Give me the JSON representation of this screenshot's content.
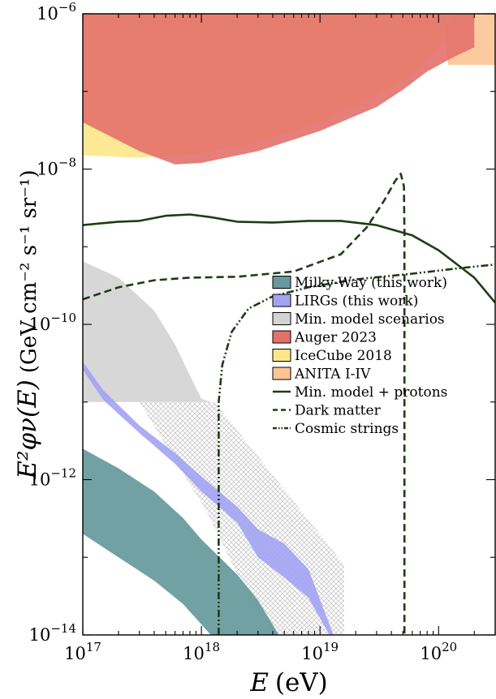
{
  "chart_data": {
    "type": "area",
    "xlabel_main": "E",
    "xlabel_unit": "(eV)",
    "ylabel_main": "E²φν(E)",
    "ylabel_unit": "(GeV cm⁻² s⁻¹ sr⁻¹)",
    "x_scale": "log",
    "y_scale": "log",
    "xlim": [
      1e+17,
      3e+20
    ],
    "ylim": [
      1e-14,
      1e-06
    ],
    "x_ticks": [
      {
        "value": 1e+17,
        "base": "10",
        "exp": "17"
      },
      {
        "value": 1e+18,
        "base": "10",
        "exp": "18"
      },
      {
        "value": 1e+19,
        "base": "10",
        "exp": "19"
      },
      {
        "value": 1e+20,
        "base": "10",
        "exp": "20"
      }
    ],
    "y_ticks": [
      {
        "value": 1e-14,
        "base": "10",
        "exp": "−14"
      },
      {
        "value": 1e-12,
        "base": "10",
        "exp": "−12"
      },
      {
        "value": 1e-10,
        "base": "10",
        "exp": "−10"
      },
      {
        "value": 1e-08,
        "base": "10",
        "exp": "−8"
      },
      {
        "value": 1e-06,
        "base": "10",
        "exp": "−6"
      }
    ],
    "grid": false,
    "legend_position": "center-right",
    "series": [
      {
        "name": "ANITA I-IV",
        "kind": "band",
        "color": "#fbc595",
        "upper": [
          [
            1e+17,
            1e-06
          ],
          [
            3e+20,
            1e-06
          ]
        ],
        "lower": [
          [
            1.1e+20,
            1e-06
          ],
          [
            1.2e+20,
            2.2e-07
          ],
          [
            3e+20,
            2.2e-07
          ]
        ]
      },
      {
        "name": "IceCube 2018",
        "kind": "band",
        "color": "#fde68a",
        "upper": [
          [
            1e+17,
            1e-06
          ],
          [
            3e+20,
            1e-06
          ]
        ],
        "lower": [
          [
            1e+17,
            1.5e-08
          ],
          [
            3e+17,
            1.4e-08
          ],
          [
            1e+18,
            1.6e-08
          ],
          [
            3e+18,
            2.2e-08
          ],
          [
            1e+19,
            4e-08
          ],
          [
            3e+19,
            9e-08
          ],
          [
            6e+19,
            1.6e-07
          ],
          [
            1e+20,
            3.5e-07
          ],
          [
            1.3e+20,
            1e-06
          ]
        ]
      },
      {
        "name": "Auger 2023",
        "kind": "band",
        "color": "#e3716a",
        "upper": [
          [
            1e+17,
            1e-06
          ],
          [
            2e+20,
            1e-06
          ]
        ],
        "lower": [
          [
            1e+17,
            4e-08
          ],
          [
            3e+17,
            1.7e-08
          ],
          [
            6e+17,
            1.15e-08
          ],
          [
            1e+18,
            1.2e-08
          ],
          [
            3e+18,
            1.7e-08
          ],
          [
            1e+19,
            3.1e-08
          ],
          [
            3e+19,
            6.3e-08
          ],
          [
            5e+19,
            1.05e-07
          ],
          [
            8e+19,
            1.8e-07
          ],
          [
            1.3e+20,
            2.7e-07
          ],
          [
            2e+20,
            3.7e-07
          ]
        ]
      },
      {
        "name": "Min. model scenarios",
        "kind": "band",
        "color": "#d3d3d3",
        "upper": [
          [
            1e+17,
            6.5e-10
          ],
          [
            2e+17,
            4e-10
          ],
          [
            4e+17,
            1.5e-10
          ],
          [
            6e+17,
            5.5e-11
          ],
          [
            8e+17,
            2.2e-11
          ],
          [
            1e+18,
            1.1e-11
          ],
          [
            1.2e+18,
            1e-11
          ]
        ],
        "lower": [
          [
            1e+17,
            1e-11
          ],
          [
            1.2e+18,
            1e-11
          ]
        ]
      },
      {
        "name": "Min. model hatched",
        "kind": "band",
        "color": "#d0d0d0",
        "upper": [
          [
            3e+17,
            1e-11
          ],
          [
            1.3e+18,
            1e-11
          ],
          [
            1.6e+19,
            8e-14
          ]
        ],
        "lower": [
          [
            3e+17,
            1e-11
          ],
          [
            1.1e+18,
            4e-13
          ],
          [
            2.5e+18,
            3e-14
          ],
          [
            4.2e+18,
            1e-14
          ],
          [
            1.6e+19,
            1e-14
          ]
        ]
      },
      {
        "name": "LIRGs (this work)",
        "kind": "band",
        "color": "#a3a3f4",
        "upper": [
          [
            1e+17,
            3.3e-11
          ],
          [
            1.5e+17,
            1.4e-11
          ],
          [
            3e+17,
            5e-12
          ],
          [
            6e+17,
            2.2e-12
          ],
          [
            1e+18,
            1.1e-12
          ],
          [
            2e+18,
            4.5e-13
          ],
          [
            3e+18,
            2.3e-13
          ],
          [
            5e+18,
            1.5e-13
          ],
          [
            8e+18,
            7e-14
          ],
          [
            1.3e+19,
            1e-14
          ]
        ],
        "lower": [
          [
            1e+17,
            2.6e-11
          ],
          [
            1.5e+17,
            1.05e-11
          ],
          [
            3e+17,
            4e-12
          ],
          [
            6e+17,
            1.6e-12
          ],
          [
            1e+18,
            7e-13
          ],
          [
            2e+18,
            2.8e-13
          ],
          [
            3e+18,
            1e-13
          ],
          [
            5e+18,
            5.5e-14
          ],
          [
            8e+18,
            3e-14
          ],
          [
            1.2e+19,
            1e-14
          ]
        ]
      },
      {
        "name": "Milky-Way (this work)",
        "kind": "band",
        "color": "#66999b",
        "upper": [
          [
            1e+17,
            2.5e-12
          ],
          [
            2e+17,
            1.4e-12
          ],
          [
            4e+17,
            7e-13
          ],
          [
            7e+17,
            3.2e-13
          ],
          [
            1e+18,
            1.7e-13
          ],
          [
            2e+18,
            6e-14
          ],
          [
            3e+18,
            2.8e-14
          ],
          [
            4.5e+18,
            1e-14
          ]
        ],
        "lower": [
          [
            1e+17,
            2e-13
          ],
          [
            2e+17,
            1e-13
          ],
          [
            4e+17,
            5e-14
          ],
          [
            7e+17,
            2.5e-14
          ],
          [
            1.2e+18,
            1e-14
          ]
        ]
      },
      {
        "name": "Min. model + protons",
        "kind": "line",
        "style": "solid",
        "color": "#1c3d14",
        "points": [
          [
            1e+17,
            1.9e-09
          ],
          [
            2e+17,
            2.1e-09
          ],
          [
            3e+17,
            2.15e-09
          ],
          [
            5e+17,
            2.5e-09
          ],
          [
            8e+17,
            2.6e-09
          ],
          [
            1.2e+18,
            2.4e-09
          ],
          [
            2e+18,
            2.1e-09
          ],
          [
            4e+18,
            2.05e-09
          ],
          [
            8e+18,
            2.15e-09
          ],
          [
            1.5e+19,
            2.15e-09
          ],
          [
            3e+19,
            1.9e-09
          ],
          [
            6e+19,
            1.4e-09
          ],
          [
            1e+20,
            9e-10
          ],
          [
            2e+20,
            4e-10
          ],
          [
            3e+20,
            1.9e-10
          ]
        ]
      },
      {
        "name": "Dark matter",
        "kind": "line",
        "style": "dashed",
        "color": "#1c3d14",
        "points": [
          [
            1e+17,
            2.1e-10
          ],
          [
            2e+17,
            3e-10
          ],
          [
            4e+17,
            3.7e-10
          ],
          [
            8e+17,
            4e-10
          ],
          [
            2e+18,
            4.1e-10
          ],
          [
            6e+18,
            4.8e-10
          ],
          [
            1.5e+19,
            8e-10
          ],
          [
            2.5e+19,
            1.8e-09
          ],
          [
            3.5e+19,
            4e-09
          ],
          [
            4.3e+19,
            7e-09
          ],
          [
            4.8e+19,
            8.7e-09
          ],
          [
            5.1e+19,
            6e-09
          ],
          [
            5.15e+19,
            1.5e-09
          ],
          [
            5.15e+19,
            1e-14
          ]
        ]
      },
      {
        "name": "Cosmic strings",
        "kind": "line",
        "style": "dashdotdot",
        "color": "#1c3d14",
        "points": [
          [
            1.4e+18,
            1e-14
          ],
          [
            1.4e+18,
            1e-11
          ],
          [
            1.5e+18,
            3e-11
          ],
          [
            1.8e+18,
            8e-11
          ],
          [
            2.5e+18,
            1.6e-10
          ],
          [
            4e+18,
            2.3e-10
          ],
          [
            8e+18,
            3e-10
          ],
          [
            2e+19,
            3.8e-10
          ],
          [
            6e+19,
            4.5e-10
          ],
          [
            1.5e+20,
            5.3e-10
          ],
          [
            3e+20,
            5.9e-10
          ]
        ]
      }
    ],
    "legend": [
      {
        "label": "Milky-Way (this work)",
        "kind": "patch",
        "color": "#66999b"
      },
      {
        "label": "LIRGs (this work)",
        "kind": "patch",
        "color": "#a3a3f4"
      },
      {
        "label": "Min. model scenarios",
        "kind": "patch",
        "color": "#d3d3d3"
      },
      {
        "label": "Auger 2023",
        "kind": "patch",
        "color": "#e3716a"
      },
      {
        "label": "IceCube 2018",
        "kind": "patch",
        "color": "#fde68a"
      },
      {
        "label": "ANITA I-IV",
        "kind": "patch",
        "color": "#fbc595"
      },
      {
        "label": "Min. model + protons",
        "kind": "solid",
        "color": "#1c3d14"
      },
      {
        "label": "Dark matter",
        "kind": "dashed",
        "color": "#1c3d14"
      },
      {
        "label": "Cosmic strings",
        "kind": "dashdotdot",
        "color": "#1c3d14"
      }
    ]
  }
}
